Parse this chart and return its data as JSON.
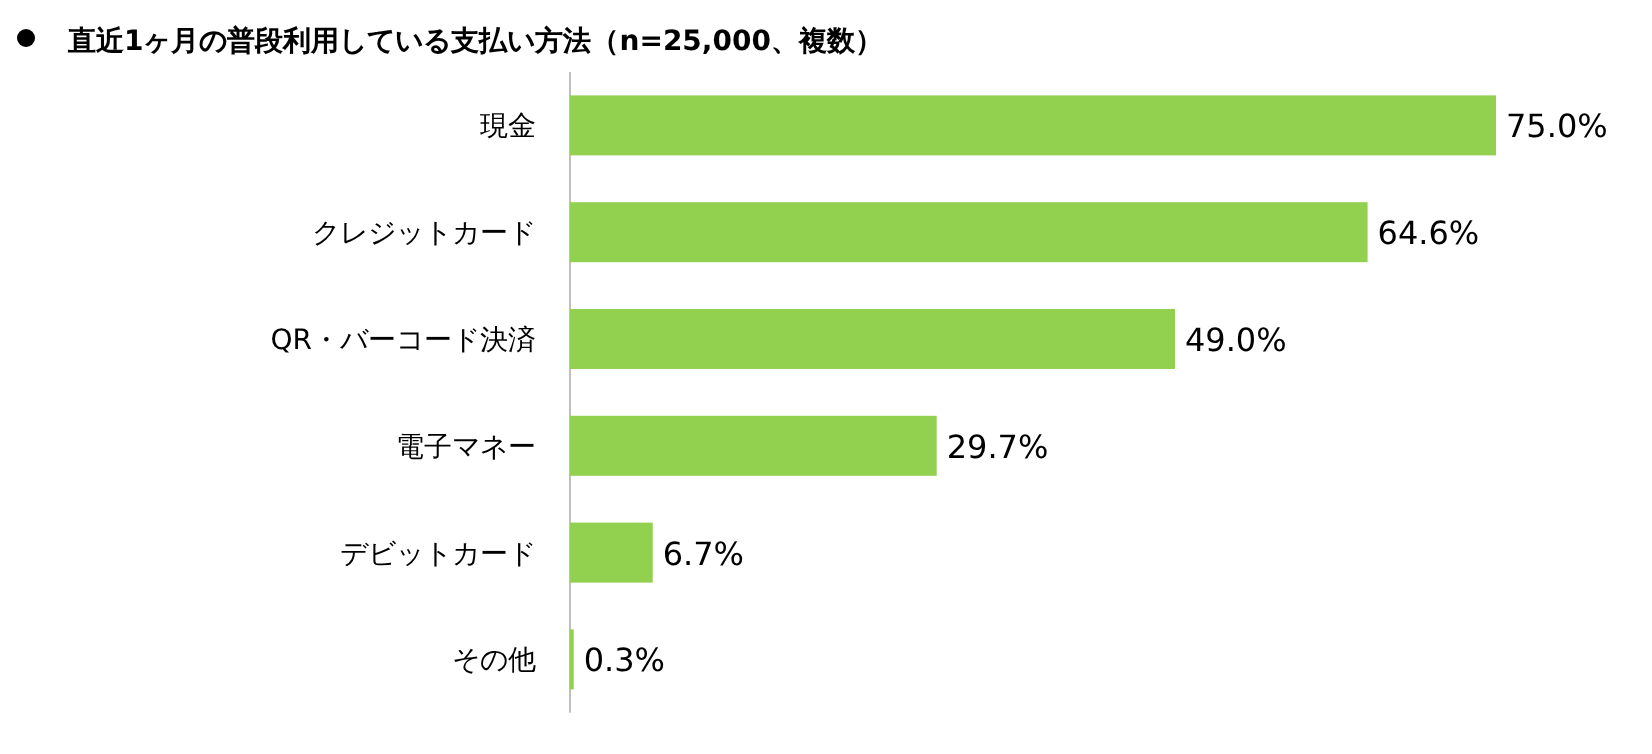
{
  "chart_data": {
    "type": "bar",
    "orientation": "horizontal",
    "title": "直近1ヶ月の普段利用している支払い方法（n=25,000、複数）",
    "categories": [
      "現金",
      "クレジットカード",
      "QR・バーコード決済",
      "電子マネー",
      "デビットカード",
      "その他"
    ],
    "values": [
      75.0,
      64.6,
      49.0,
      29.7,
      6.7,
      0.3
    ],
    "value_labels": [
      "75.0%",
      "64.6%",
      "49.0%",
      "29.7%",
      "6.7%",
      "0.3%"
    ],
    "color": "#92d050"
  }
}
